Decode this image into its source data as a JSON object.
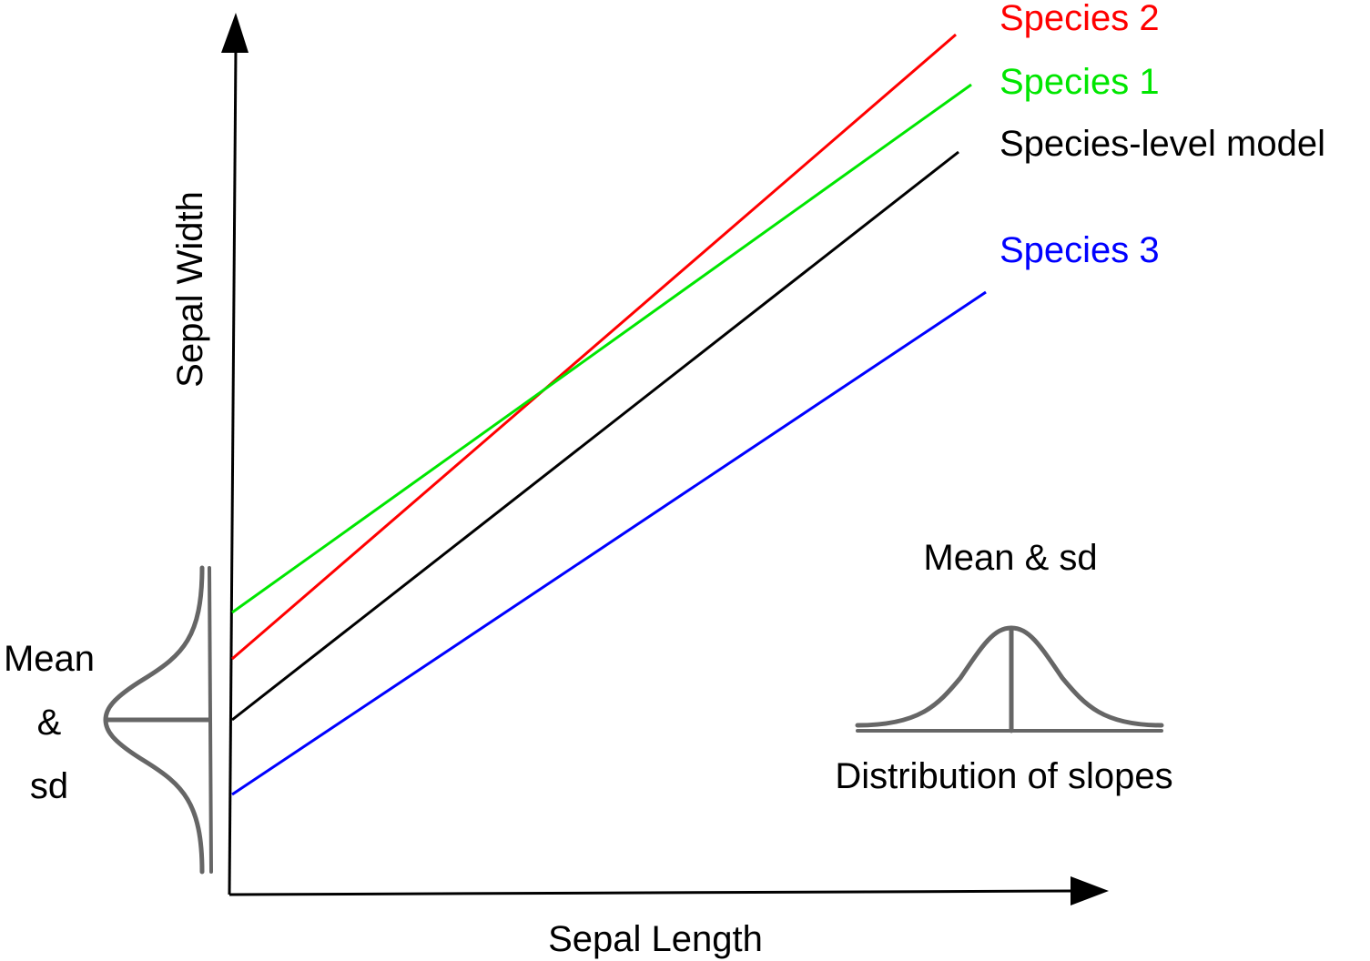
{
  "axes": {
    "x_label": "Sepal Length",
    "y_label": "Sepal Width"
  },
  "lines": [
    {
      "label": "Species 2",
      "color": "#ff0000"
    },
    {
      "label": "Species 1",
      "color": "#00e600"
    },
    {
      "label": "Species-level model",
      "color": "#000000"
    },
    {
      "label": "Species 3",
      "color": "#0000ff"
    }
  ],
  "intercept_distribution": {
    "label_line1": "Mean",
    "label_line2": "&",
    "label_line3": "sd"
  },
  "slope_distribution": {
    "title": "Mean & sd",
    "caption": "Distribution of slopes"
  },
  "colors": {
    "axis": "#000000",
    "curve": "#666666"
  }
}
